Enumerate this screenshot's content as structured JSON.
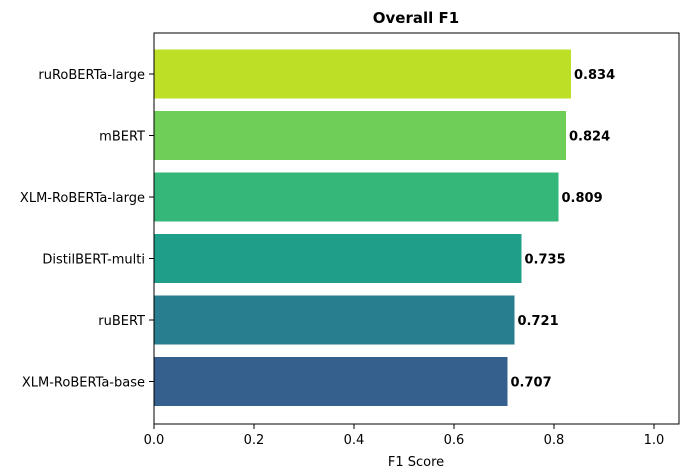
{
  "chart_data": {
    "type": "bar",
    "orientation": "horizontal",
    "title": "Overall F1",
    "xlabel": "F1 Score",
    "ylabel": "",
    "xlim": [
      0,
      1.05
    ],
    "xticks": [
      "0.0",
      "0.2",
      "0.4",
      "0.6",
      "0.8",
      "1.0"
    ],
    "xtick_values": [
      0,
      0.2,
      0.4,
      0.6,
      0.8,
      1.0
    ],
    "grid": false,
    "legend": "none",
    "categories": [
      "ruRoBERTa-large",
      "mBERT",
      "XLM-RoBERTa-large",
      "DistilBERT-multi",
      "ruBERT",
      "XLM-RoBERTa-base"
    ],
    "values": [
      0.834,
      0.824,
      0.809,
      0.735,
      0.721,
      0.707
    ],
    "value_labels": [
      "0.834",
      "0.824",
      "0.809",
      "0.735",
      "0.721",
      "0.707"
    ],
    "colors": [
      "#bddf26",
      "#6ece58",
      "#35b779",
      "#1f9e89",
      "#287d8e",
      "#355f8d"
    ]
  }
}
